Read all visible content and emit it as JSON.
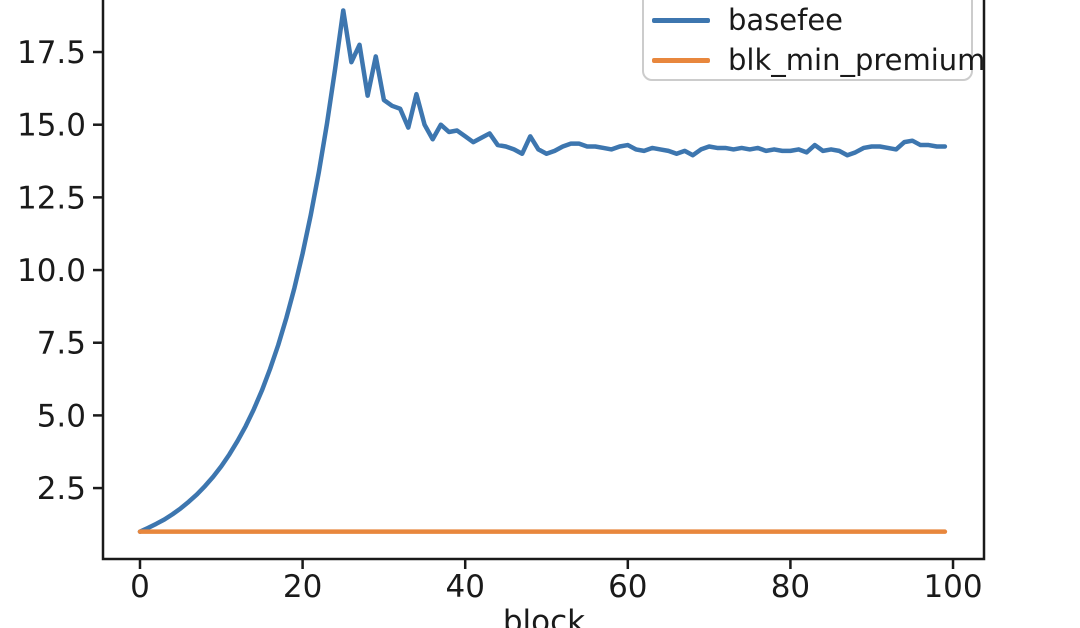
{
  "figure": {
    "background_color": "#ffffff",
    "axis_color": "#1a1a1a",
    "text_color": "#1a1a1a",
    "legend_border_color": "#cccccc"
  },
  "chart_data": {
    "type": "line",
    "title": "",
    "xlabel": "block",
    "ylabel": "",
    "grid": false,
    "legend_position": "upper right (clipped at top of image)",
    "x_ticks": [
      "0",
      "20",
      "40",
      "60",
      "80",
      "100"
    ],
    "y_ticks": [
      "2.5",
      "5.0",
      "7.5",
      "10.0",
      "12.5",
      "15.0",
      "17.5"
    ],
    "xlim": [
      -4.55,
      103.81
    ],
    "ylim": [
      0.06,
      19.29
    ],
    "x_start": 0,
    "x_step": 1,
    "series": [
      {
        "name": "basefee",
        "color": "#3d76af",
        "values": [
          1.0,
          1.13,
          1.27,
          1.42,
          1.6,
          1.8,
          2.03,
          2.28,
          2.57,
          2.89,
          3.25,
          3.66,
          4.12,
          4.63,
          5.21,
          5.86,
          6.6,
          7.42,
          8.35,
          9.39,
          10.57,
          11.89,
          13.37,
          15.04,
          16.92,
          18.93,
          17.15,
          17.75,
          16.0,
          17.35,
          15.85,
          15.65,
          15.55,
          14.9,
          16.05,
          15.0,
          14.5,
          15.0,
          14.75,
          14.8,
          14.6,
          14.4,
          14.55,
          14.7,
          14.3,
          14.25,
          14.15,
          14.0,
          14.6,
          14.15,
          14.0,
          14.1,
          14.25,
          14.35,
          14.35,
          14.25,
          14.25,
          14.2,
          14.15,
          14.25,
          14.3,
          14.15,
          14.1,
          14.2,
          14.15,
          14.1,
          14.0,
          14.1,
          13.95,
          14.15,
          14.25,
          14.2,
          14.2,
          14.15,
          14.2,
          14.15,
          14.2,
          14.1,
          14.15,
          14.1,
          14.1,
          14.15,
          14.05,
          14.3,
          14.1,
          14.15,
          14.1,
          13.95,
          14.05,
          14.2,
          14.25,
          14.25,
          14.2,
          14.15,
          14.4,
          14.45,
          14.3,
          14.3,
          14.25,
          14.25
        ]
      },
      {
        "name": "blk_min_premium",
        "color": "#e8873d",
        "constant": 1.0,
        "n": 100
      }
    ]
  }
}
